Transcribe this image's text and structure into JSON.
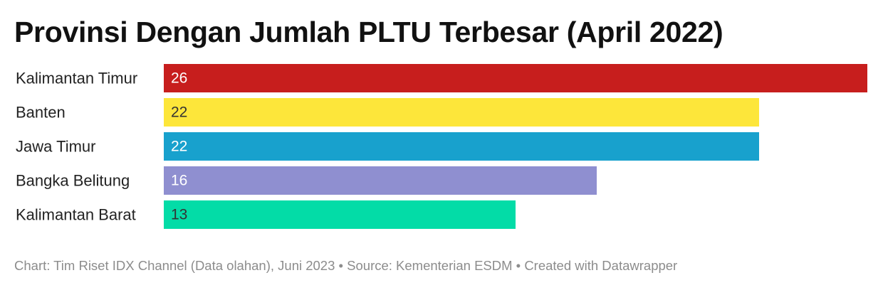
{
  "footer": {
    "credit": "Chart: Tim Riset IDX Channel (Data olahan), Juni 2023",
    "separator": " • ",
    "source": "Source: Kementerian ESDM",
    "created": "Created with Datawrapper"
  },
  "chart_data": {
    "type": "bar",
    "orientation": "horizontal",
    "title": "Provinsi Dengan Jumlah PLTU Terbesar (April 2022)",
    "categories": [
      "Kalimantan Timur",
      "Banten",
      "Jawa Timur",
      "Bangka Belitung",
      "Kalimantan Barat"
    ],
    "values": [
      26,
      22,
      22,
      16,
      13
    ],
    "colors": [
      "#c71e1d",
      "#fde63a",
      "#18a1cd",
      "#8f8fd0",
      "#03dca7"
    ],
    "value_label_colors": [
      "#ffffff",
      "#333333",
      "#ffffff",
      "#ffffff",
      "#333333"
    ],
    "xlim": [
      0,
      26
    ],
    "grid": false,
    "legend": "none"
  }
}
